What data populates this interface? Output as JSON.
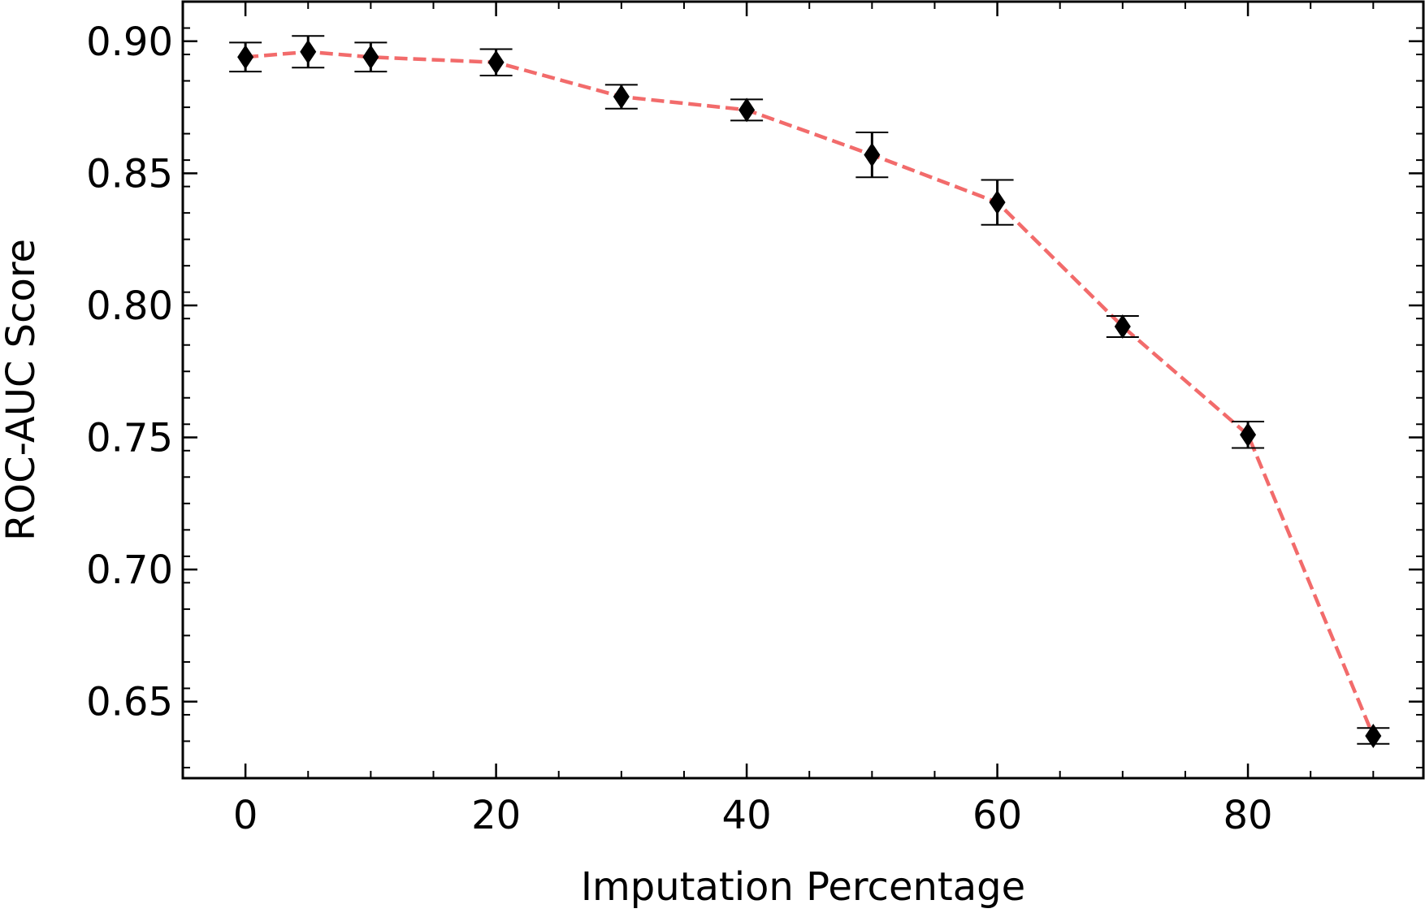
{
  "chart_data": {
    "type": "line",
    "title": "",
    "xlabel": "Imputation Percentage",
    "ylabel": "ROC-AUC Score",
    "xlim": [
      -5,
      94
    ],
    "ylim": [
      0.621,
      0.915
    ],
    "x_ticks": [
      0,
      20,
      40,
      60,
      80
    ],
    "x_tick_labels": [
      "0",
      "20",
      "40",
      "60",
      "80"
    ],
    "y_ticks": [
      0.65,
      0.7,
      0.75,
      0.8,
      0.85,
      0.9
    ],
    "y_tick_labels": [
      "0.65",
      "0.70",
      "0.75",
      "0.80",
      "0.85",
      "0.90"
    ],
    "grid": false,
    "legend": "none",
    "series": [
      {
        "marker": "diamond",
        "marker_color": "#000000",
        "line_style": "dashed",
        "line_color": "#f26b6b",
        "x": [
          0,
          5,
          10,
          20,
          30,
          40,
          50,
          60,
          70,
          80,
          90
        ],
        "y": [
          0.894,
          0.896,
          0.894,
          0.892,
          0.879,
          0.874,
          0.857,
          0.839,
          0.792,
          0.751,
          0.637
        ],
        "error": [
          0.0055,
          0.006,
          0.0055,
          0.005,
          0.0045,
          0.004,
          0.0085,
          0.0085,
          0.004,
          0.005,
          0.003
        ]
      }
    ]
  }
}
